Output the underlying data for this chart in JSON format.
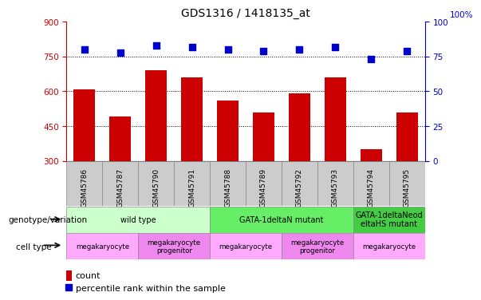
{
  "title": "GDS1316 / 1418135_at",
  "samples": [
    "GSM45786",
    "GSM45787",
    "GSM45790",
    "GSM45791",
    "GSM45788",
    "GSM45789",
    "GSM45792",
    "GSM45793",
    "GSM45794",
    "GSM45795"
  ],
  "counts": [
    610,
    490,
    690,
    660,
    560,
    510,
    590,
    660,
    350,
    510
  ],
  "percentile": [
    80,
    78,
    83,
    82,
    80,
    79,
    80,
    82,
    73,
    79
  ],
  "ylim_left": [
    300,
    900
  ],
  "ylim_right": [
    0,
    100
  ],
  "yticks_left": [
    300,
    450,
    600,
    750,
    900
  ],
  "yticks_right": [
    0,
    25,
    50,
    75,
    100
  ],
  "bar_color": "#cc0000",
  "dot_color": "#0000cc",
  "genotype_groups": [
    {
      "label": "wild type",
      "start": 0,
      "end": 4,
      "color": "#ccffcc"
    },
    {
      "label": "GATA-1deltaN mutant",
      "start": 4,
      "end": 8,
      "color": "#66ee66"
    },
    {
      "label": "GATA-1deltaNeod\neltaHS mutant",
      "start": 8,
      "end": 10,
      "color": "#44cc44"
    }
  ],
  "celltype_groups": [
    {
      "label": "megakaryocyte",
      "start": 0,
      "end": 2,
      "color": "#ffaaff"
    },
    {
      "label": "megakaryocyte\nprogenitor",
      "start": 2,
      "end": 4,
      "color": "#ee88ee"
    },
    {
      "label": "megakaryocyte",
      "start": 4,
      "end": 6,
      "color": "#ffaaff"
    },
    {
      "label": "megakaryocyte\nprogenitor",
      "start": 6,
      "end": 8,
      "color": "#ee88ee"
    },
    {
      "label": "megakaryocyte",
      "start": 8,
      "end": 10,
      "color": "#ffaaff"
    }
  ],
  "legend_count_label": "count",
  "legend_percentile_label": "percentile rank within the sample",
  "genotype_label": "genotype/variation",
  "celltype_label": "cell type",
  "bar_width": 0.6,
  "dot_size": 40,
  "axis_color_left": "#cc0000",
  "axis_color_right": "#0000cc",
  "xtick_label_bg": "#cccccc",
  "hlines": [
    750,
    600,
    450
  ]
}
